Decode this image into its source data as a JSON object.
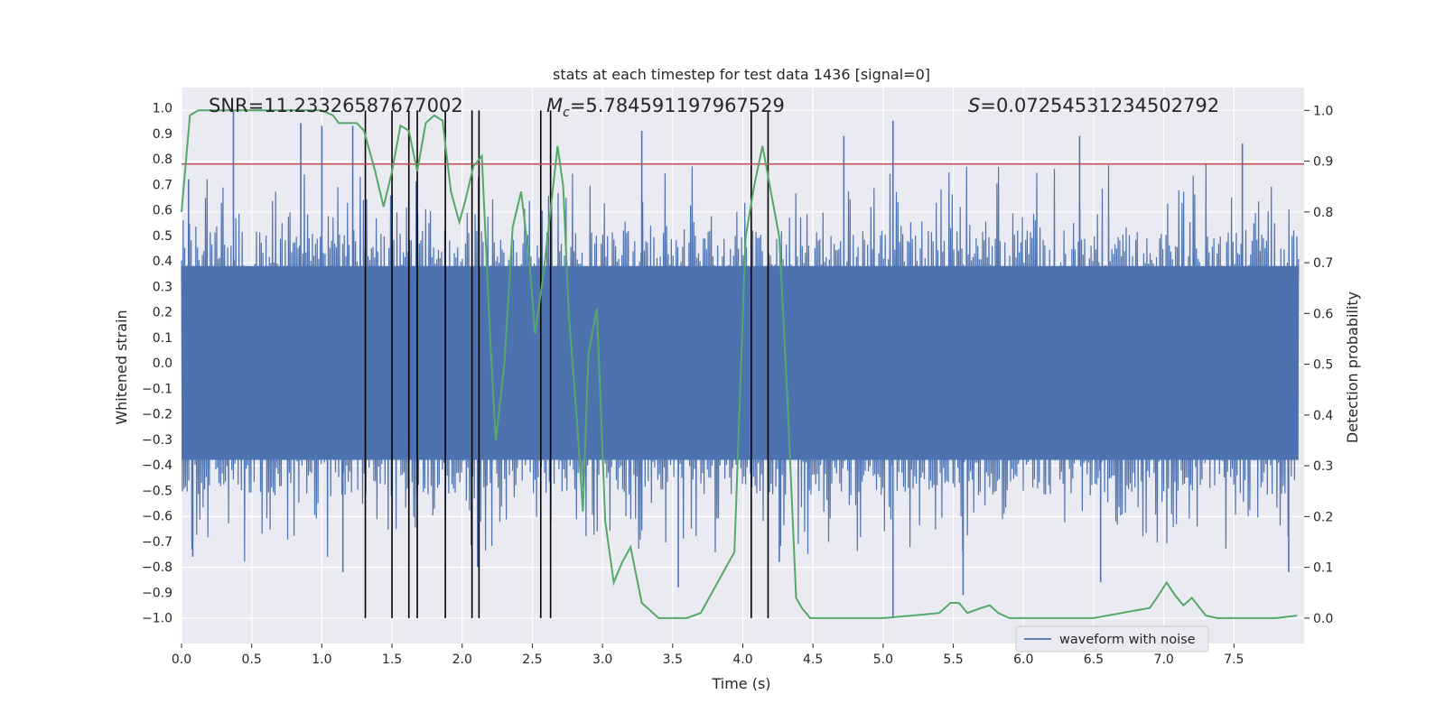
{
  "colors": {
    "panel": "#eaeaf2",
    "grid": "#ffffff",
    "waveform": "#4c72b0",
    "probability": "#55a868",
    "threshold": "#c44e52",
    "marker": "#000000",
    "text": "#262626"
  },
  "chart_data": {
    "type": "line",
    "title": "stats at each timestep for test data 1436 [signal=0]",
    "xlabel": "Time (s)",
    "ylabel_left": "Whitened strain",
    "ylabel_right": "Detection probability",
    "xlim": [
      0,
      8
    ],
    "ylim_left": [
      -1.1,
      1.08
    ],
    "ylim_right": [
      -0.05,
      1.045
    ],
    "xticks": [
      "0.0",
      "0.5",
      "1.0",
      "1.5",
      "2.0",
      "2.5",
      "3.0",
      "3.5",
      "4.0",
      "4.5",
      "5.0",
      "5.5",
      "6.0",
      "6.5",
      "7.0",
      "7.5"
    ],
    "yticks_left": [
      "1.0",
      "0.9",
      "0.8",
      "0.7",
      "0.6",
      "0.5",
      "0.4",
      "0.3",
      "0.2",
      "0.1",
      "0.0",
      "-0.1",
      "-0.2",
      "-0.3",
      "-0.4",
      "-0.5",
      "-0.6",
      "-0.7",
      "-0.8",
      "-0.9",
      "-1.0"
    ],
    "yticks_right": [
      "1.0",
      "0.9",
      "0.8",
      "0.7",
      "0.6",
      "0.5",
      "0.4",
      "0.3",
      "0.2",
      "0.1",
      "0.0"
    ],
    "annotations": {
      "snr": "SNR=11.23326587677002",
      "mc_symbol": "M",
      "mc_sub": "c",
      "mc_value": "=5.784591197967529",
      "s_symbol": "S",
      "s_value": "=0.07254531234502792"
    },
    "legend": [
      "waveform with noise"
    ],
    "threshold": 0.78,
    "waveform": {
      "name": "waveform with noise",
      "note": "dense noisy strain series, approx. 0.5-1.0 envelope",
      "spikes": [
        [
          0.37,
          0.99
        ],
        [
          0.05,
          0.72
        ],
        [
          0.85,
          0.94
        ],
        [
          1.0,
          0.93
        ],
        [
          1.22,
          0.93
        ],
        [
          3.28,
          0.91
        ],
        [
          4.72,
          0.89
        ],
        [
          5.07,
          0.95
        ],
        [
          6.4,
          0.89
        ],
        [
          7.56,
          0.86
        ],
        [
          0.08,
          -0.76
        ],
        [
          1.15,
          -0.82
        ],
        [
          3.54,
          -0.88
        ],
        [
          5.07,
          -1.0
        ],
        [
          5.57,
          -0.91
        ],
        [
          6.55,
          -0.86
        ],
        [
          7.89,
          -0.82
        ],
        [
          4.26,
          -0.78
        ],
        [
          2.11,
          -0.8
        ]
      ]
    },
    "probability": {
      "name": "detection probability",
      "x": [
        0.0,
        0.06,
        0.12,
        0.3,
        0.6,
        0.9,
        1.0,
        1.08,
        1.12,
        1.25,
        1.3,
        1.38,
        1.44,
        1.5,
        1.56,
        1.62,
        1.68,
        1.74,
        1.8,
        1.86,
        1.92,
        1.98,
        2.02,
        2.08,
        2.14,
        2.2,
        2.24,
        2.3,
        2.36,
        2.42,
        2.48,
        2.52,
        2.58,
        2.62,
        2.68,
        2.72,
        2.76,
        2.82,
        2.86,
        2.9,
        2.96,
        3.02,
        3.08,
        3.14,
        3.2,
        3.28,
        3.4,
        3.6,
        3.7,
        3.78,
        3.84,
        3.94,
        4.02,
        4.08,
        4.14,
        4.26,
        4.32,
        4.38,
        4.42,
        4.48,
        4.6,
        4.8,
        5.0,
        5.2,
        5.4,
        5.48,
        5.54,
        5.6,
        5.7,
        5.76,
        5.82,
        5.9,
        6.0,
        6.2,
        6.5,
        6.7,
        6.8,
        6.9,
        6.95,
        7.02,
        7.08,
        7.14,
        7.2,
        7.3,
        7.38,
        7.46,
        7.6,
        7.8,
        7.95
      ],
      "values": [
        0.8,
        0.99,
        1.0,
        1.0,
        1.0,
        1.0,
        1.0,
        0.99,
        0.975,
        0.975,
        0.96,
        0.88,
        0.81,
        0.88,
        0.97,
        0.96,
        0.88,
        0.975,
        0.99,
        0.98,
        0.84,
        0.78,
        0.82,
        0.89,
        0.91,
        0.55,
        0.35,
        0.5,
        0.77,
        0.84,
        0.7,
        0.56,
        0.68,
        0.78,
        0.93,
        0.85,
        0.6,
        0.38,
        0.21,
        0.52,
        0.61,
        0.19,
        0.07,
        0.11,
        0.14,
        0.03,
        0.0,
        0.0,
        0.01,
        0.05,
        0.08,
        0.13,
        0.75,
        0.85,
        0.93,
        0.75,
        0.42,
        0.04,
        0.02,
        0.0,
        0.0,
        0.0,
        0.0,
        0.005,
        0.01,
        0.03,
        0.03,
        0.01,
        0.02,
        0.025,
        0.01,
        0.0,
        0.0,
        0.0,
        0.0,
        0.01,
        0.015,
        0.02,
        0.04,
        0.07,
        0.045,
        0.025,
        0.04,
        0.005,
        0.0,
        0.0,
        0.0,
        0.0,
        0.005
      ]
    },
    "vertical_markers": [
      1.31,
      1.5,
      1.62,
      1.68,
      1.88,
      2.07,
      2.12,
      2.56,
      2.63,
      4.06,
      4.18
    ]
  }
}
